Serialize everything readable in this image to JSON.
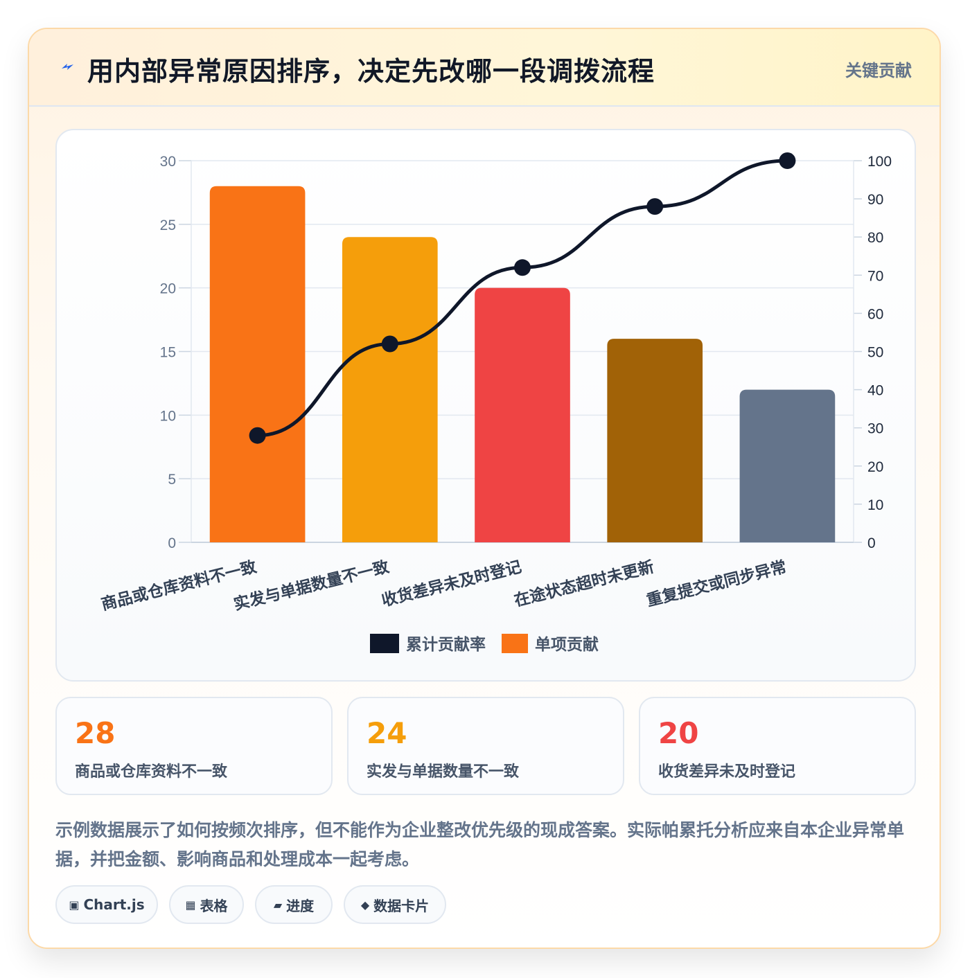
{
  "header": {
    "title": "用内部异常原因排序，决定先改哪一段调拨流程",
    "badge": "关键贡献",
    "icon": "lightning-icon"
  },
  "colors": {
    "orange": "#f97316",
    "amber": "#f59e0b",
    "red": "#ef4444",
    "brown": "#a16207",
    "slate": "#64748b",
    "line": "#0f172a"
  },
  "chart_data": {
    "type": "bar",
    "categories": [
      "商品或仓库资料不一致",
      "实发与单据数量不一致",
      "收货差异未及时登记",
      "在途状态超时未更新",
      "重复提交或同步异常"
    ],
    "series": [
      {
        "name": "单项贡献",
        "type": "bar",
        "axis": "left",
        "values": [
          28,
          24,
          20,
          16,
          12
        ],
        "colors": [
          "#f97316",
          "#f59e0b",
          "#ef4444",
          "#a16207",
          "#64748b"
        ]
      },
      {
        "name": "累计贡献率",
        "type": "line",
        "axis": "right",
        "values": [
          28,
          52,
          72,
          88,
          100
        ],
        "color": "#0f172a"
      }
    ],
    "y_left": {
      "min": 0,
      "max": 30,
      "ticks": [
        0,
        5,
        10,
        15,
        20,
        25,
        30
      ]
    },
    "y_right": {
      "min": 0,
      "max": 100,
      "ticks": [
        0,
        10,
        20,
        30,
        40,
        50,
        60,
        70,
        80,
        90,
        100
      ]
    },
    "legend": {
      "position": "bottom",
      "items": [
        "累计贡献率",
        "单项贡献"
      ]
    },
    "grid": true
  },
  "stats": [
    {
      "value": "28",
      "label": "商品或仓库资料不一致",
      "color": "#f97316"
    },
    {
      "value": "24",
      "label": "实发与单据数量不一致",
      "color": "#f59e0b"
    },
    {
      "value": "20",
      "label": "收货差异未及时登记",
      "color": "#ef4444"
    }
  ],
  "note": "示例数据展示了如何按频次排序，但不能作为企业整改优先级的现成答案。实际帕累托分析应来自本企业异常单据，并把金额、影响商品和处理成本一起考虑。",
  "tags": [
    {
      "icon": "▣",
      "icon_name": "chart-icon",
      "label": "Chart.js"
    },
    {
      "icon": "▦",
      "icon_name": "table-icon",
      "label": "表格"
    },
    {
      "icon": "▰",
      "icon_name": "progress-icon",
      "label": "进度"
    },
    {
      "icon": "◆",
      "icon_name": "data-card-icon",
      "label": "数据卡片"
    }
  ]
}
